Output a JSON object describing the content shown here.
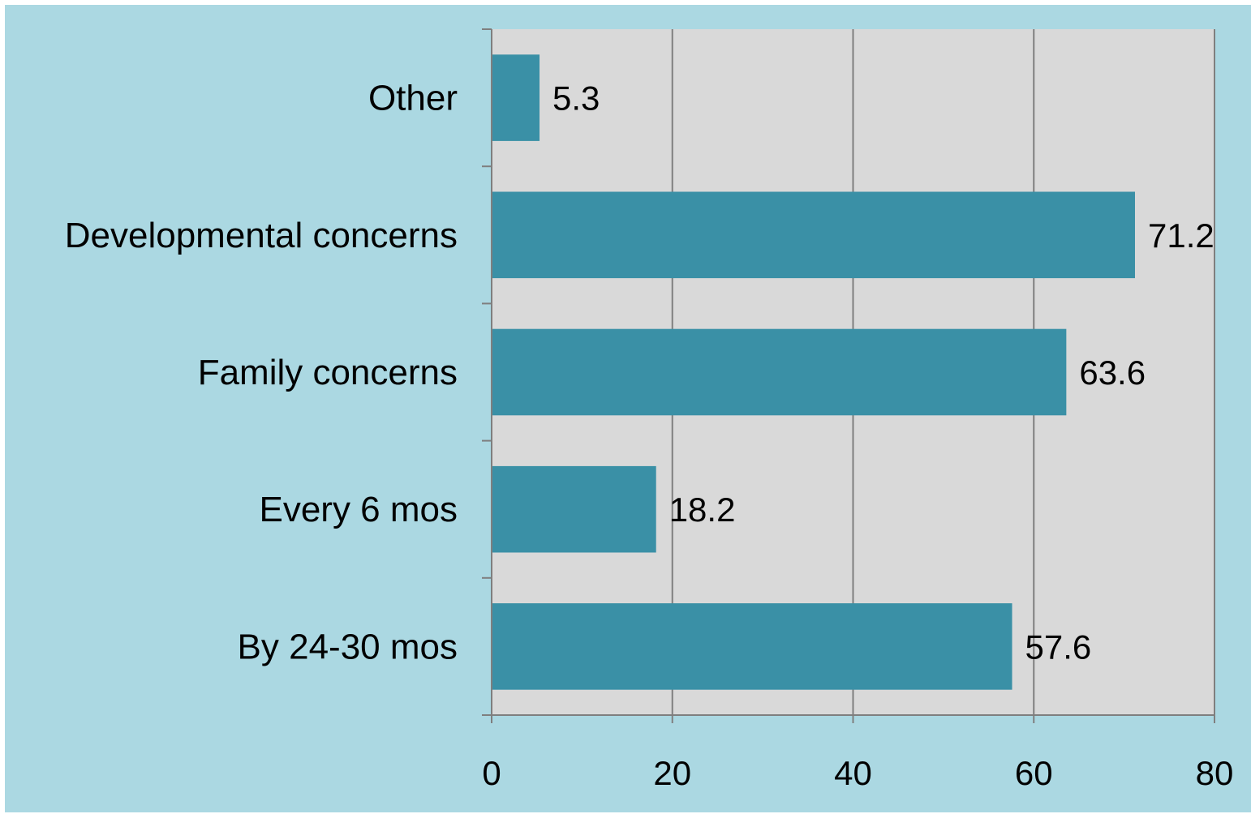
{
  "chart_data": {
    "type": "bar",
    "orientation": "horizontal",
    "categories": [
      "Other",
      "Developmental concerns",
      "Family concerns",
      "Every 6 mos",
      "By 24-30 mos"
    ],
    "values": [
      5.3,
      71.2,
      63.6,
      18.2,
      57.6
    ],
    "data_labels": [
      "5.3",
      "71.2",
      "63.6",
      "18.2",
      "57.6"
    ],
    "x_ticks": [
      "0",
      "20",
      "40",
      "60",
      "80"
    ],
    "xlim": [
      0,
      80
    ],
    "title": "",
    "xlabel": "",
    "ylabel": "",
    "grid": "vertical",
    "legend": "none",
    "colors": {
      "bar": "#3a90a6",
      "plot_background": "#d9d9d9",
      "chart_background": "#abd8e2",
      "gridline": "#7f7f7f",
      "axis": "#7f7f7f"
    }
  }
}
